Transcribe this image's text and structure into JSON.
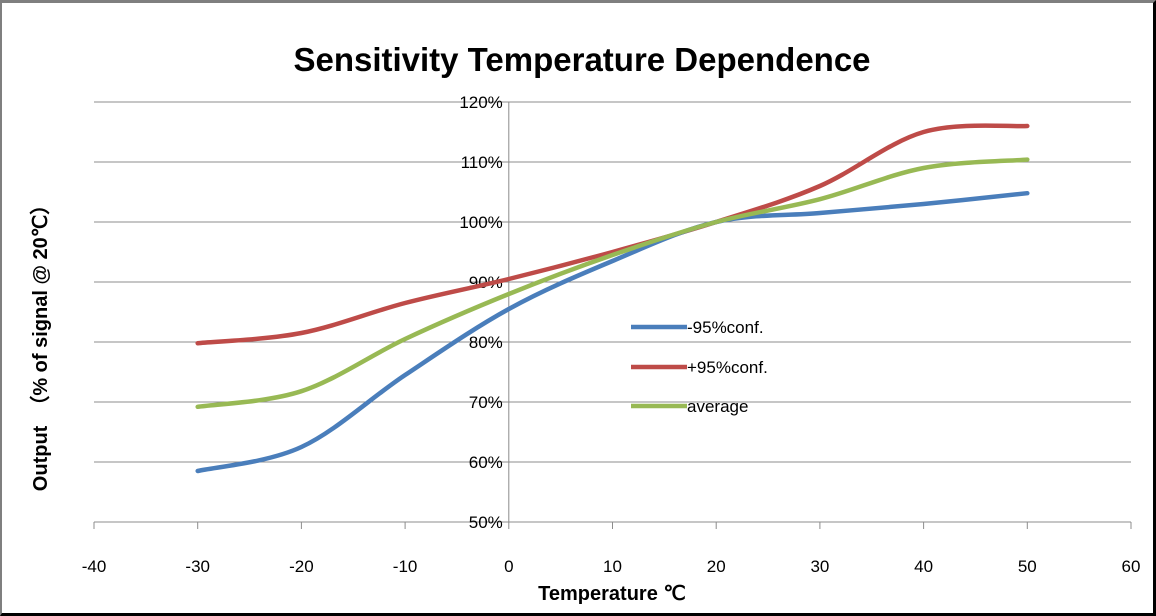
{
  "chart_data": {
    "type": "line",
    "title": "Sensitivity Temperature Dependence",
    "xlabel": "Temperature ℃",
    "ylabel": "Output　（% of signal  @ 20℃）",
    "xlim": [
      -40,
      60
    ],
    "ylim": [
      50,
      120
    ],
    "x_ticks": [
      "-40",
      "-30",
      "-20",
      "-10",
      "0",
      "10",
      "20",
      "30",
      "40",
      "50",
      "60"
    ],
    "y_ticks": [
      "50%",
      "60%",
      "70%",
      "80%",
      "90%",
      "100%",
      "110%",
      "120%"
    ],
    "y_unit": "%",
    "grid": "horizontal",
    "legend_position": "center-right",
    "x": [
      -30,
      -20,
      -10,
      0,
      10,
      20,
      30,
      40,
      50
    ],
    "series": [
      {
        "name": "-95%conf.",
        "color": "#4a7ebb",
        "values": [
          58.5,
          62.5,
          74.5,
          85.5,
          93.5,
          100.0,
          101.5,
          103.0,
          104.8
        ]
      },
      {
        "name": "+95%conf.",
        "color": "#be4b48",
        "values": [
          79.8,
          81.5,
          86.5,
          90.5,
          95.0,
          100.0,
          106.0,
          115.0,
          116.0
        ]
      },
      {
        "name": "average",
        "color": "#98b954",
        "values": [
          69.2,
          71.8,
          80.5,
          88.0,
          94.5,
          100.0,
          103.8,
          109.0,
          110.4
        ]
      }
    ]
  }
}
